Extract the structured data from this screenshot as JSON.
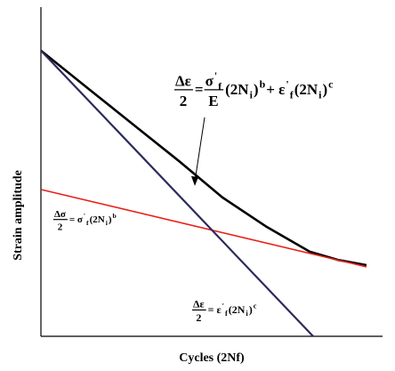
{
  "chart_data": {
    "type": "line",
    "xlabel": "Cycles (2Nf)",
    "ylabel": "Strain amplitude",
    "xlim": [
      0,
      100
    ],
    "ylim": [
      0,
      100
    ],
    "series": [
      {
        "color": "#000000",
        "x": [
          0,
          14.1,
          27.2,
          40.3,
          53.4,
          66.5,
          79.1,
          87.4,
          95.8
        ],
        "values": [
          86.8,
          75.1,
          64.3,
          53.5,
          42.2,
          33.2,
          25.7,
          23.2,
          21.6
        ]
      },
      {
        "color": "#e8201a",
        "x": [
          0,
          95.8
        ],
        "values": [
          44.6,
          21.1
        ]
      },
      {
        "color": "#2c2a5a",
        "x": [
          0,
          80.1
        ],
        "values": [
          86.8,
          0
        ]
      }
    ],
    "annotations": [
      {
        "items": [
          {
            "num": [
              {
                "text": "Δε",
                "pos": "base"
              }
            ],
            "den": [
              {
                "text": "2",
                "pos": "base"
              }
            ]
          },
          {
            "text": "=",
            "pos": "base"
          },
          {
            "num": [
              {
                "text": "σ",
                "pos": "base"
              },
              {
                "text": "'",
                "pos": "sup"
              },
              {
                "text": "f",
                "pos": "sub"
              }
            ],
            "den": [
              {
                "text": "E",
                "pos": "base"
              }
            ]
          },
          {
            "text": "(2N",
            "pos": "base"
          },
          {
            "text": "i",
            "pos": "sub"
          },
          {
            "text": ")",
            "pos": "base"
          },
          {
            "text": "b",
            "pos": "sup"
          },
          {
            "text": "+ ε",
            "pos": "base"
          },
          {
            "text": "'",
            "pos": "sup"
          },
          {
            "text": "f",
            "pos": "sub"
          },
          {
            "text": "(2N",
            "pos": "base"
          },
          {
            "text": "i",
            "pos": "sub"
          },
          {
            "text": ")",
            "pos": "base"
          },
          {
            "text": "c",
            "pos": "sup"
          }
        ]
      },
      {
        "items": [
          {
            "num": [
              {
                "text": "Δσ",
                "pos": "base"
              }
            ],
            "den": [
              {
                "text": "2",
                "pos": "base"
              }
            ]
          },
          {
            "text": "= σ",
            "pos": "base"
          },
          {
            "text": "'",
            "pos": "sup"
          },
          {
            "text": "f",
            "pos": "sub"
          },
          {
            "text": "(2N",
            "pos": "base"
          },
          {
            "text": "i",
            "pos": "sub"
          },
          {
            "text": ")",
            "pos": "base"
          },
          {
            "text": "b",
            "pos": "sup"
          }
        ]
      },
      {
        "items": [
          {
            "num": [
              {
                "text": "Δε",
                "pos": "base"
              }
            ],
            "den": [
              {
                "text": "2",
                "pos": "base"
              }
            ]
          },
          {
            "text": "= ε",
            "pos": "base"
          },
          {
            "text": "'",
            "pos": "sup"
          },
          {
            "text": "f",
            "pos": "sub"
          },
          {
            "text": "(2N",
            "pos": "base"
          },
          {
            "text": "i",
            "pos": "sub"
          },
          {
            "text": ")",
            "pos": "base"
          },
          {
            "text": "c",
            "pos": "sup"
          }
        ]
      }
    ]
  }
}
